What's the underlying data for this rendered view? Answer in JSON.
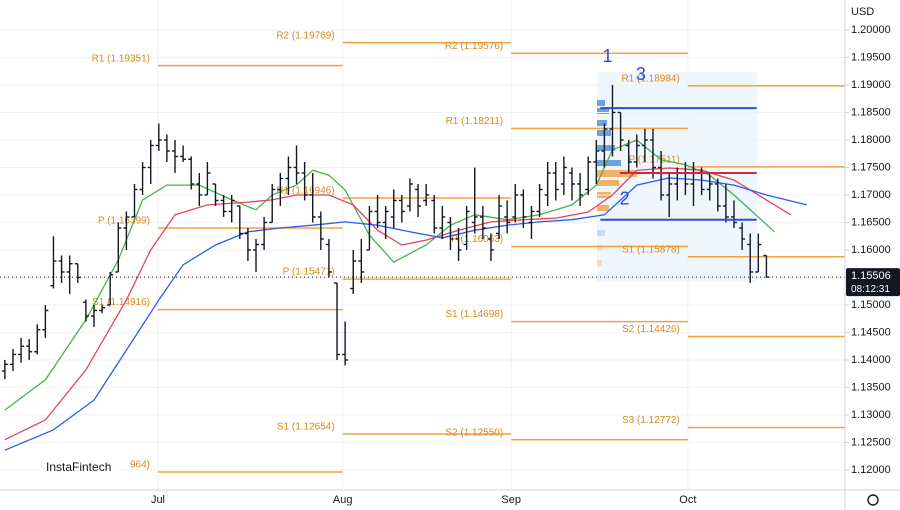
{
  "chart_data": {
    "type": "ohlc",
    "currency": "USD",
    "logo": "InstaFintech",
    "xlim": [
      -0.6,
      103.7
    ],
    "ylim": [
      1.11636,
      1.20545
    ],
    "grid": true,
    "xticks": [
      {
        "value": 18.9,
        "label": "Jul"
      },
      {
        "value": 41.7,
        "label": "Aug"
      },
      {
        "value": 62.5,
        "label": "Sep"
      },
      {
        "value": 84.3,
        "label": "Oct"
      }
    ],
    "yticks": [
      {
        "value": 1.12,
        "label": "1.12000"
      },
      {
        "value": 1.125,
        "label": "1.12500"
      },
      {
        "value": 1.13,
        "label": "1.13000"
      },
      {
        "value": 1.135,
        "label": "1.13500"
      },
      {
        "value": 1.14,
        "label": "1.14000"
      },
      {
        "value": 1.145,
        "label": "1.14500"
      },
      {
        "value": 1.15,
        "label": "1.15000"
      },
      {
        "value": 1.155,
        "label": "1.15500"
      },
      {
        "value": 1.16,
        "label": "1.16000"
      },
      {
        "value": 1.165,
        "label": "1.16500"
      },
      {
        "value": 1.17,
        "label": "1.17000"
      },
      {
        "value": 1.175,
        "label": "1.17500"
      },
      {
        "value": 1.18,
        "label": "1.18000"
      },
      {
        "value": 1.185,
        "label": "1.18500"
      },
      {
        "value": 1.19,
        "label": "1.19000"
      },
      {
        "value": 1.195,
        "label": "1.19500"
      },
      {
        "value": 1.2,
        "label": "1.20000"
      }
    ],
    "bar_color": "#131722",
    "ohlc": [
      [
        1.138,
        1.14,
        1.1365,
        1.1392
      ],
      [
        1.1392,
        1.142,
        1.138,
        1.141
      ],
      [
        1.141,
        1.144,
        1.1395,
        1.1425
      ],
      [
        1.1425,
        1.1438,
        1.14,
        1.1415
      ],
      [
        1.1415,
        1.1465,
        1.141,
        1.1455
      ],
      [
        1.1455,
        1.15,
        1.144,
        1.149
      ],
      [
        1.1535,
        1.1625,
        1.153,
        1.158
      ],
      [
        1.158,
        1.159,
        1.154,
        1.156
      ],
      [
        1.156,
        1.159,
        1.152,
        1.1575
      ],
      [
        1.1575,
        1.1575,
        1.154,
        1.155
      ],
      [
        1.1505,
        1.151,
        1.147,
        1.148
      ],
      [
        1.148,
        1.15,
        1.146,
        1.149
      ],
      [
        1.149,
        1.15,
        1.1485,
        1.1495
      ],
      [
        1.15,
        1.156,
        1.15,
        1.1555
      ],
      [
        1.156,
        1.165,
        1.156,
        1.164
      ],
      [
        1.164,
        1.167,
        1.16,
        1.166
      ],
      [
        1.166,
        1.172,
        1.166,
        1.171
      ],
      [
        1.171,
        1.176,
        1.17,
        1.175
      ],
      [
        1.175,
        1.18,
        1.172,
        1.179
      ],
      [
        1.179,
        1.183,
        1.178,
        1.18
      ],
      [
        1.18,
        1.181,
        1.176,
        1.178
      ],
      [
        1.178,
        1.18,
        1.174,
        1.177
      ],
      [
        1.177,
        1.179,
        1.176,
        1.1765
      ],
      [
        1.1765,
        1.177,
        1.171,
        1.172
      ],
      [
        1.172,
        1.174,
        1.168,
        1.17
      ],
      [
        1.17,
        1.176,
        1.17,
        1.174
      ],
      [
        1.172,
        1.172,
        1.168,
        1.169
      ],
      [
        1.169,
        1.17,
        1.166,
        1.167
      ],
      [
        1.167,
        1.17,
        1.165,
        1.169
      ],
      [
        1.168,
        1.168,
        1.162,
        1.163
      ],
      [
        1.163,
        1.164,
        1.158,
        1.16
      ],
      [
        1.16,
        1.162,
        1.156,
        1.161
      ],
      [
        1.161,
        1.166,
        1.16,
        1.165
      ],
      [
        1.165,
        1.172,
        1.165,
        1.171
      ],
      [
        1.171,
        1.174,
        1.168,
        1.173
      ],
      [
        1.173,
        1.177,
        1.17,
        1.175
      ],
      [
        1.175,
        1.179,
        1.172,
        1.174
      ],
      [
        1.174,
        1.176,
        1.169,
        1.17
      ],
      [
        1.17,
        1.174,
        1.165,
        1.166
      ],
      [
        1.166,
        1.167,
        1.16,
        1.162
      ],
      [
        1.161,
        1.162,
        1.155,
        1.156
      ],
      [
        1.154,
        1.154,
        1.14,
        1.141
      ],
      [
        1.141,
        1.147,
        1.139,
        1.14
      ],
      [
        1.153,
        1.16,
        1.152,
        1.158
      ],
      [
        1.158,
        1.162,
        1.154,
        1.156
      ],
      [
        1.16,
        1.168,
        1.16,
        1.167
      ],
      [
        1.167,
        1.17,
        1.164,
        1.165
      ],
      [
        1.165,
        1.168,
        1.162,
        1.167
      ],
      [
        1.166,
        1.171,
        1.164,
        1.169
      ],
      [
        1.169,
        1.17,
        1.165,
        1.167
      ],
      [
        1.168,
        1.173,
        1.167,
        1.172
      ],
      [
        1.171,
        1.172,
        1.166,
        1.168
      ],
      [
        1.169,
        1.172,
        1.168,
        1.17
      ],
      [
        1.169,
        1.17,
        1.163,
        1.164
      ],
      [
        1.164,
        1.168,
        1.162,
        1.166
      ],
      [
        1.165,
        1.166,
        1.16,
        1.162
      ],
      [
        1.162,
        1.164,
        1.158,
        1.16
      ],
      [
        1.161,
        1.168,
        1.16,
        1.167
      ],
      [
        1.165,
        1.175,
        1.163,
        1.166
      ],
      [
        1.166,
        1.168,
        1.162,
        1.164
      ],
      [
        1.162,
        1.163,
        1.158,
        1.16
      ],
      [
        1.163,
        1.17,
        1.162,
        1.168
      ],
      [
        1.166,
        1.169,
        1.163,
        1.165
      ],
      [
        1.166,
        1.172,
        1.165,
        1.17
      ],
      [
        1.17,
        1.171,
        1.164,
        1.166
      ],
      [
        1.165,
        1.168,
        1.162,
        1.167
      ],
      [
        1.167,
        1.172,
        1.166,
        1.171
      ],
      [
        1.17,
        1.176,
        1.168,
        1.174
      ],
      [
        1.174,
        1.176,
        1.169,
        1.171
      ],
      [
        1.172,
        1.177,
        1.17,
        1.175
      ],
      [
        1.174,
        1.175,
        1.169,
        1.172
      ],
      [
        1.172,
        1.174,
        1.168,
        1.17
      ],
      [
        1.171,
        1.177,
        1.17,
        1.176
      ],
      [
        1.176,
        1.18,
        1.172,
        1.178
      ],
      [
        1.178,
        1.183,
        1.175,
        1.182
      ],
      [
        1.182,
        1.19,
        1.177,
        1.185
      ],
      [
        1.185,
        1.185,
        1.178,
        1.18
      ],
      [
        1.179,
        1.18,
        1.174,
        1.176
      ],
      [
        1.176,
        1.181,
        1.175,
        1.179
      ],
      [
        1.179,
        1.182,
        1.176,
        1.18
      ],
      [
        1.18,
        1.182,
        1.173,
        1.175
      ],
      [
        1.175,
        1.178,
        1.169,
        1.17
      ],
      [
        1.17,
        1.174,
        1.166,
        1.172
      ],
      [
        1.172,
        1.175,
        1.169,
        1.174
      ],
      [
        1.174,
        1.176,
        1.17,
        1.172
      ],
      [
        1.172,
        1.176,
        1.168,
        1.174
      ],
      [
        1.174,
        1.175,
        1.17,
        1.171
      ],
      [
        1.171,
        1.174,
        1.169,
        1.172
      ],
      [
        1.172,
        1.173,
        1.167,
        1.168
      ],
      [
        1.168,
        1.172,
        1.165,
        1.166
      ],
      [
        1.166,
        1.169,
        1.164,
        1.165
      ],
      [
        1.164,
        1.165,
        1.16,
        1.162
      ],
      [
        1.161,
        1.163,
        1.154,
        1.156
      ],
      [
        1.156,
        1.163,
        1.156,
        1.161
      ],
      [
        1.159,
        1.159,
        1.155,
        1.15506
      ]
    ],
    "moving_averages": [
      {
        "color": "#4caf50",
        "x": [
          0,
          5,
          10,
          14,
          17,
          20,
          24,
          28,
          31,
          33,
          36,
          38,
          40,
          42,
          45,
          48,
          52,
          55,
          58,
          62,
          66,
          70,
          73,
          75,
          78,
          81,
          84,
          87,
          90,
          95
        ],
        "values": [
          1.1309,
          1.1364,
          1.1473,
          1.1582,
          1.1691,
          1.1718,
          1.1718,
          1.1691,
          1.1673,
          1.17,
          1.1718,
          1.1745,
          1.1736,
          1.1709,
          1.1627,
          1.1578,
          1.1609,
          1.1645,
          1.1664,
          1.1655,
          1.1664,
          1.1682,
          1.1718,
          1.1782,
          1.18,
          1.1764,
          1.1755,
          1.1736,
          1.17,
          1.1633
        ]
      },
      {
        "color": "#e0455a",
        "x": [
          0,
          5,
          10,
          15,
          18,
          21,
          25,
          30,
          33,
          36,
          40,
          43,
          46,
          49,
          52,
          56,
          60,
          64,
          68,
          72,
          75,
          78,
          82,
          86,
          90,
          94,
          97
        ],
        "values": [
          1.1255,
          1.1291,
          1.1382,
          1.1509,
          1.16,
          1.1664,
          1.1682,
          1.1687,
          1.1691,
          1.17,
          1.17,
          1.1682,
          1.1636,
          1.1609,
          1.1618,
          1.1636,
          1.1651,
          1.1655,
          1.1658,
          1.1669,
          1.17,
          1.1745,
          1.1749,
          1.1745,
          1.1727,
          1.1691,
          1.1664
        ]
      },
      {
        "color": "#2f5bea",
        "x": [
          0,
          6,
          11,
          15,
          19,
          22,
          26,
          30,
          34,
          38,
          42,
          46,
          50,
          54,
          58,
          62,
          66,
          70,
          74,
          78,
          82,
          86,
          90,
          94,
          99
        ],
        "values": [
          1.1236,
          1.1273,
          1.1327,
          1.1418,
          1.1509,
          1.1573,
          1.1609,
          1.1633,
          1.164,
          1.1645,
          1.1651,
          1.1645,
          1.1633,
          1.1622,
          1.1636,
          1.1645,
          1.1651,
          1.1655,
          1.1664,
          1.1718,
          1.1731,
          1.1727,
          1.1718,
          1.17,
          1.1682
        ]
      }
    ],
    "pivot_color": "#f5a142",
    "pivot_levels": [
      {
        "label": "R1 (1.19351)",
        "value": 1.19351,
        "x": [
          18.9,
          41.7
        ]
      },
      {
        "label": "P (1.16399)",
        "value": 1.16399,
        "x": [
          18.9,
          41.7
        ]
      },
      {
        "label": "S1 (1.14916)",
        "value": 1.14916,
        "x": [
          18.9,
          41.7
        ]
      },
      {
        "label": "964)",
        "value": 1.11964,
        "x": [
          18.9,
          41.7
        ]
      },
      {
        "label": "R2 (1.19769)",
        "value": 1.19769,
        "x": [
          41.7,
          62.5
        ]
      },
      {
        "label": "R1 (1.16946)",
        "value": 1.16946,
        "x": [
          41.7,
          62.5
        ]
      },
      {
        "label": "P (1.15471)",
        "value": 1.15471,
        "x": [
          41.7,
          62.5
        ]
      },
      {
        "label": "S1 (1.12654)",
        "value": 1.12654,
        "x": [
          41.7,
          62.5
        ]
      },
      {
        "label": "R2 (1.19576)",
        "value": 1.19576,
        "x": [
          62.5,
          84.3
        ]
      },
      {
        "label": "R1 (1.18211)",
        "value": 1.18211,
        "x": [
          62.5,
          84.3
        ]
      },
      {
        "label": "P (1.16063)",
        "value": 1.16063,
        "x": [
          62.5,
          84.3
        ]
      },
      {
        "label": "S1 (1.14698)",
        "value": 1.14698,
        "x": [
          62.5,
          84.3
        ]
      },
      {
        "label": "S2 (1.12550)",
        "value": 1.1255,
        "x": [
          62.5,
          84.3
        ]
      },
      {
        "label": "R1 (1.18984)",
        "value": 1.18984,
        "x": [
          84.3,
          103.7
        ]
      },
      {
        "label": "P (1.17511)",
        "value": 1.17511,
        "x": [
          84.3,
          103.7
        ]
      },
      {
        "label": "S1 (1.15878)",
        "value": 1.15878,
        "x": [
          84.3,
          103.7
        ]
      },
      {
        "label": "S2 (1.14426)",
        "value": 1.14426,
        "x": [
          84.3,
          103.7
        ]
      },
      {
        "label": "S3 (1.12772)",
        "value": 1.12772,
        "x": [
          84.3,
          103.7
        ]
      }
    ],
    "drawn_lines": [
      {
        "value": 1.1858,
        "x": [
          73.5,
          92.8
        ],
        "color": "#2a4fd0"
      },
      {
        "value": 1.1655,
        "x": [
          73.5,
          92.8
        ],
        "color": "#2a4fd0"
      },
      {
        "value": 1.174,
        "x": [
          75.9,
          92.8
        ],
        "color": "#d3263f"
      }
    ],
    "annotations": [
      {
        "text": "1",
        "x": 74.4,
        "y": 1.195
      },
      {
        "text": "2",
        "x": 76.5,
        "y": 1.1691
      },
      {
        "text": "3",
        "x": 78.5,
        "y": 1.1918
      }
    ],
    "last_price": {
      "value": 1.15506,
      "label": "1.15506"
    },
    "countdown": "08:12:31"
  }
}
